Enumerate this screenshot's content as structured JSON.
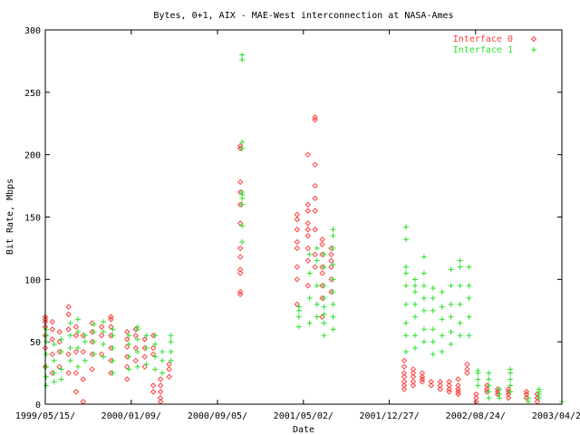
{
  "chart_data": {
    "type": "scatter",
    "title": "Bytes, 0+1, AIX - MAE-West interconnection at NASA-Ames",
    "xlabel": "Date",
    "ylabel": "Bit Rate, Mbps",
    "ylim": [
      0,
      300
    ],
    "yticks": [
      0,
      50,
      100,
      150,
      200,
      250,
      300
    ],
    "xticks": [
      "1999/05/15/",
      "2000/01/09/",
      "2000/09/05/",
      "2001/05/02/",
      "2001/12/27/",
      "2002/08/24/",
      "2003/04/21/"
    ],
    "xlim": [
      "1999/05/15",
      "2003/04/21"
    ],
    "legend": "top-right",
    "colors": {
      "series0": "#ff4040",
      "series1": "#30e030"
    },
    "series": [
      {
        "name": "Interface 0",
        "marker": "diamond",
        "points": [
          {
            "x": "1999-05-15",
            "y": [
              30,
              45,
              55,
              62,
              66,
              68,
              70
            ]
          },
          {
            "x": "1999-06-06",
            "y": [
              25,
              40,
              52,
              60,
              66
            ]
          },
          {
            "x": "1999-06-26",
            "y": [
              30,
              42,
              50,
              58
            ]
          },
          {
            "x": "1999-07-21",
            "y": [
              25,
              40,
              60,
              72,
              78
            ]
          },
          {
            "x": "1999-08-11",
            "y": [
              10,
              25,
              42,
              55,
              62
            ]
          },
          {
            "x": "1999-08-31",
            "y": [
              2,
              20,
              42,
              55
            ]
          },
          {
            "x": "1999-09-25",
            "y": [
              28,
              40,
              50,
              58,
              65
            ]
          },
          {
            "x": "1999-10-21",
            "y": [
              40,
              55,
              62
            ]
          },
          {
            "x": "1999-11-16",
            "y": [
              25,
              35,
              45,
              55,
              62,
              68,
              70
            ]
          },
          {
            "x": "1999-12-31",
            "y": [
              20,
              30,
              38,
              46,
              52,
              58
            ]
          },
          {
            "x": "2000-01-24",
            "y": [
              35,
              45,
              55,
              60
            ]
          },
          {
            "x": "2000-02-18",
            "y": [
              30,
              38,
              45,
              52
            ]
          },
          {
            "x": "2000-03-13",
            "y": [
              10,
              15,
              40,
              45,
              55
            ]
          },
          {
            "x": "2000-04-02",
            "y": [
              2,
              5,
              10,
              15,
              20
            ]
          },
          {
            "x": "2000-04-26",
            "y": [
              22,
              28,
              32
            ]
          },
          {
            "x": "2000-11-10",
            "y": [
              88,
              90,
              105,
              108,
              118,
              125,
              145,
              160,
              170,
              178,
              205,
              207
            ]
          },
          {
            "x": "2001-04-17",
            "y": [
              80,
              100,
              110,
              125,
              130,
              140,
              148,
              152
            ]
          },
          {
            "x": "2001-05-17",
            "y": [
              95,
              115,
              125,
              135,
              140,
              145,
              155,
              160,
              200
            ]
          },
          {
            "x": "2001-06-06",
            "y": [
              110,
              120,
              140,
              155,
              165,
              175,
              192,
              228,
              230
            ]
          },
          {
            "x": "2001-06-26",
            "y": [
              70,
              85,
              95,
              105,
              110,
              120,
              128,
              132
            ]
          },
          {
            "x": "2001-07-21",
            "y": [
              90,
              100,
              110,
              115,
              120,
              125
            ]
          },
          {
            "x": "2002-02-09",
            "y": [
              12,
              15,
              18,
              22,
              25,
              30,
              35
            ]
          },
          {
            "x": "2002-03-06",
            "y": [
              15,
              18,
              22,
              25,
              28
            ]
          },
          {
            "x": "2002-03-31",
            "y": [
              18,
              20,
              22,
              25
            ]
          },
          {
            "x": "2002-04-25",
            "y": [
              15,
              18
            ]
          },
          {
            "x": "2002-05-20",
            "y": [
              12,
              15,
              18
            ]
          },
          {
            "x": "2002-06-14",
            "y": [
              10,
              12,
              15,
              18
            ]
          },
          {
            "x": "2002-07-09",
            "y": [
              8,
              10,
              12,
              15,
              20
            ]
          },
          {
            "x": "2002-08-03",
            "y": [
              25,
              28,
              32
            ]
          },
          {
            "x": "2002-08-28",
            "y": [
              2,
              5,
              8
            ]
          },
          {
            "x": "2002-09-27",
            "y": [
              10,
              12,
              15
            ]
          },
          {
            "x": "2002-10-27",
            "y": [
              8,
              10,
              12
            ]
          },
          {
            "x": "2002-11-26",
            "y": [
              5,
              8,
              10,
              12
            ]
          },
          {
            "x": "2003-01-15",
            "y": [
              5,
              8,
              10
            ]
          },
          {
            "x": "2003-02-14",
            "y": [
              2,
              5,
              8
            ]
          }
        ]
      },
      {
        "name": "Interface 1",
        "marker": "plus",
        "points": [
          {
            "x": "1999-05-15",
            "y": [
              15,
              22,
              30,
              40,
              50,
              55,
              60
            ]
          },
          {
            "x": "1999-06-06",
            "y": [
              18,
              25,
              35,
              48
            ]
          },
          {
            "x": "1999-06-26",
            "y": [
              20,
              28,
              42,
              52
            ]
          },
          {
            "x": "1999-07-21",
            "y": [
              35,
              45,
              55,
              65
            ]
          },
          {
            "x": "1999-08-11",
            "y": [
              30,
              45,
              58,
              68
            ]
          },
          {
            "x": "1999-08-31",
            "y": [
              35,
              50,
              55
            ]
          },
          {
            "x": "1999-09-25",
            "y": [
              40,
              50,
              58,
              64
            ]
          },
          {
            "x": "1999-10-21",
            "y": [
              38,
              48,
              58,
              66
            ]
          },
          {
            "x": "1999-11-16",
            "y": [
              25,
              35,
              45,
              55,
              60
            ]
          },
          {
            "x": "1999-12-31",
            "y": [
              28,
              38,
              48,
              55
            ]
          },
          {
            "x": "2000-01-24",
            "y": [
              30,
              42,
              52,
              60,
              62
            ]
          },
          {
            "x": "2000-02-18",
            "y": [
              32,
              45,
              55
            ]
          },
          {
            "x": "2000-03-13",
            "y": [
              28,
              38,
              48,
              55
            ]
          },
          {
            "x": "2000-04-02",
            "y": [
              25,
              35,
              42
            ]
          },
          {
            "x": "2000-04-26",
            "y": [
              35,
              42,
              50,
              55
            ]
          },
          {
            "x": "2000-11-10",
            "y": [
              130,
              143,
              160,
              165,
              168,
              170,
              205,
              210,
              276,
              280
            ]
          },
          {
            "x": "2001-04-17",
            "y": [
              62,
              70,
              75,
              78
            ]
          },
          {
            "x": "2001-05-17",
            "y": [
              65,
              85,
              105,
              120
            ]
          },
          {
            "x": "2001-06-06",
            "y": [
              70,
              80,
              95,
              115,
              125
            ]
          },
          {
            "x": "2001-06-26",
            "y": [
              55,
              65,
              72,
              78,
              85,
              95,
              110,
              120
            ]
          },
          {
            "x": "2001-07-21",
            "y": [
              60,
              70,
              80,
              90,
              100,
              112,
              125,
              135,
              140
            ]
          },
          {
            "x": "2002-02-09",
            "y": [
              42,
              55,
              65,
              80,
              95,
              105,
              110,
              132,
              142
            ]
          },
          {
            "x": "2002-03-06",
            "y": [
              45,
              55,
              70,
              80,
              90,
              95,
              100
            ]
          },
          {
            "x": "2002-03-31",
            "y": [
              50,
              60,
              75,
              85,
              95,
              105,
              118
            ]
          },
          {
            "x": "2002-04-25",
            "y": [
              40,
              50,
              60,
              75,
              85,
              93
            ]
          },
          {
            "x": "2002-05-20",
            "y": [
              42,
              55,
              68,
              78,
              90
            ]
          },
          {
            "x": "2002-06-14",
            "y": [
              48,
              58,
              70,
              80,
              95,
              108
            ]
          },
          {
            "x": "2002-07-09",
            "y": [
              55,
              65,
              80,
              95,
              110,
              115
            ]
          },
          {
            "x": "2002-08-03",
            "y": [
              55,
              70,
              85,
              95,
              110
            ]
          },
          {
            "x": "2002-08-28",
            "y": [
              15,
              20,
              25,
              27
            ]
          },
          {
            "x": "2002-09-27",
            "y": [
              5,
              10,
              15,
              20,
              25
            ]
          },
          {
            "x": "2002-10-27",
            "y": [
              5,
              8,
              12
            ]
          },
          {
            "x": "2002-11-26",
            "y": [
              10,
              15,
              20,
              25,
              28
            ]
          },
          {
            "x": "2003-01-15",
            "y": [
              2,
              5
            ]
          },
          {
            "x": "2003-02-14",
            "y": [
              5,
              8,
              10,
              12
            ]
          },
          {
            "x": "2003-04-21",
            "y": [
              2
            ]
          }
        ]
      }
    ]
  }
}
